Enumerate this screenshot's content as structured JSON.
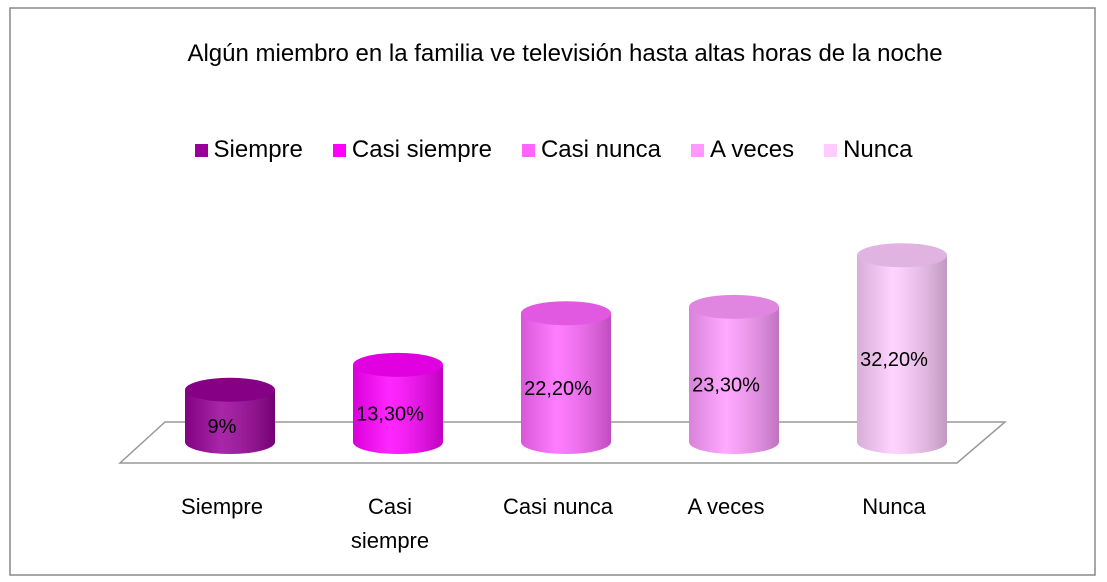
{
  "chart_data": {
    "type": "cylinder",
    "title": "Algún miembro en la familia ve televisión hasta altas horas de la noche",
    "categories": [
      "Siempre",
      "Casi siempre",
      "Casi nunca",
      "A veces",
      "Nunca"
    ],
    "values": [
      9,
      13.3,
      22.2,
      23.3,
      32.2
    ],
    "value_labels": [
      "9%",
      "13,30%",
      "22,20%",
      "23,30%",
      "32,20%"
    ],
    "colors": [
      "#990099",
      "#ff00ff",
      "#ff66ff",
      "#ff99ff",
      "#ffccff"
    ],
    "legend": "top"
  }
}
